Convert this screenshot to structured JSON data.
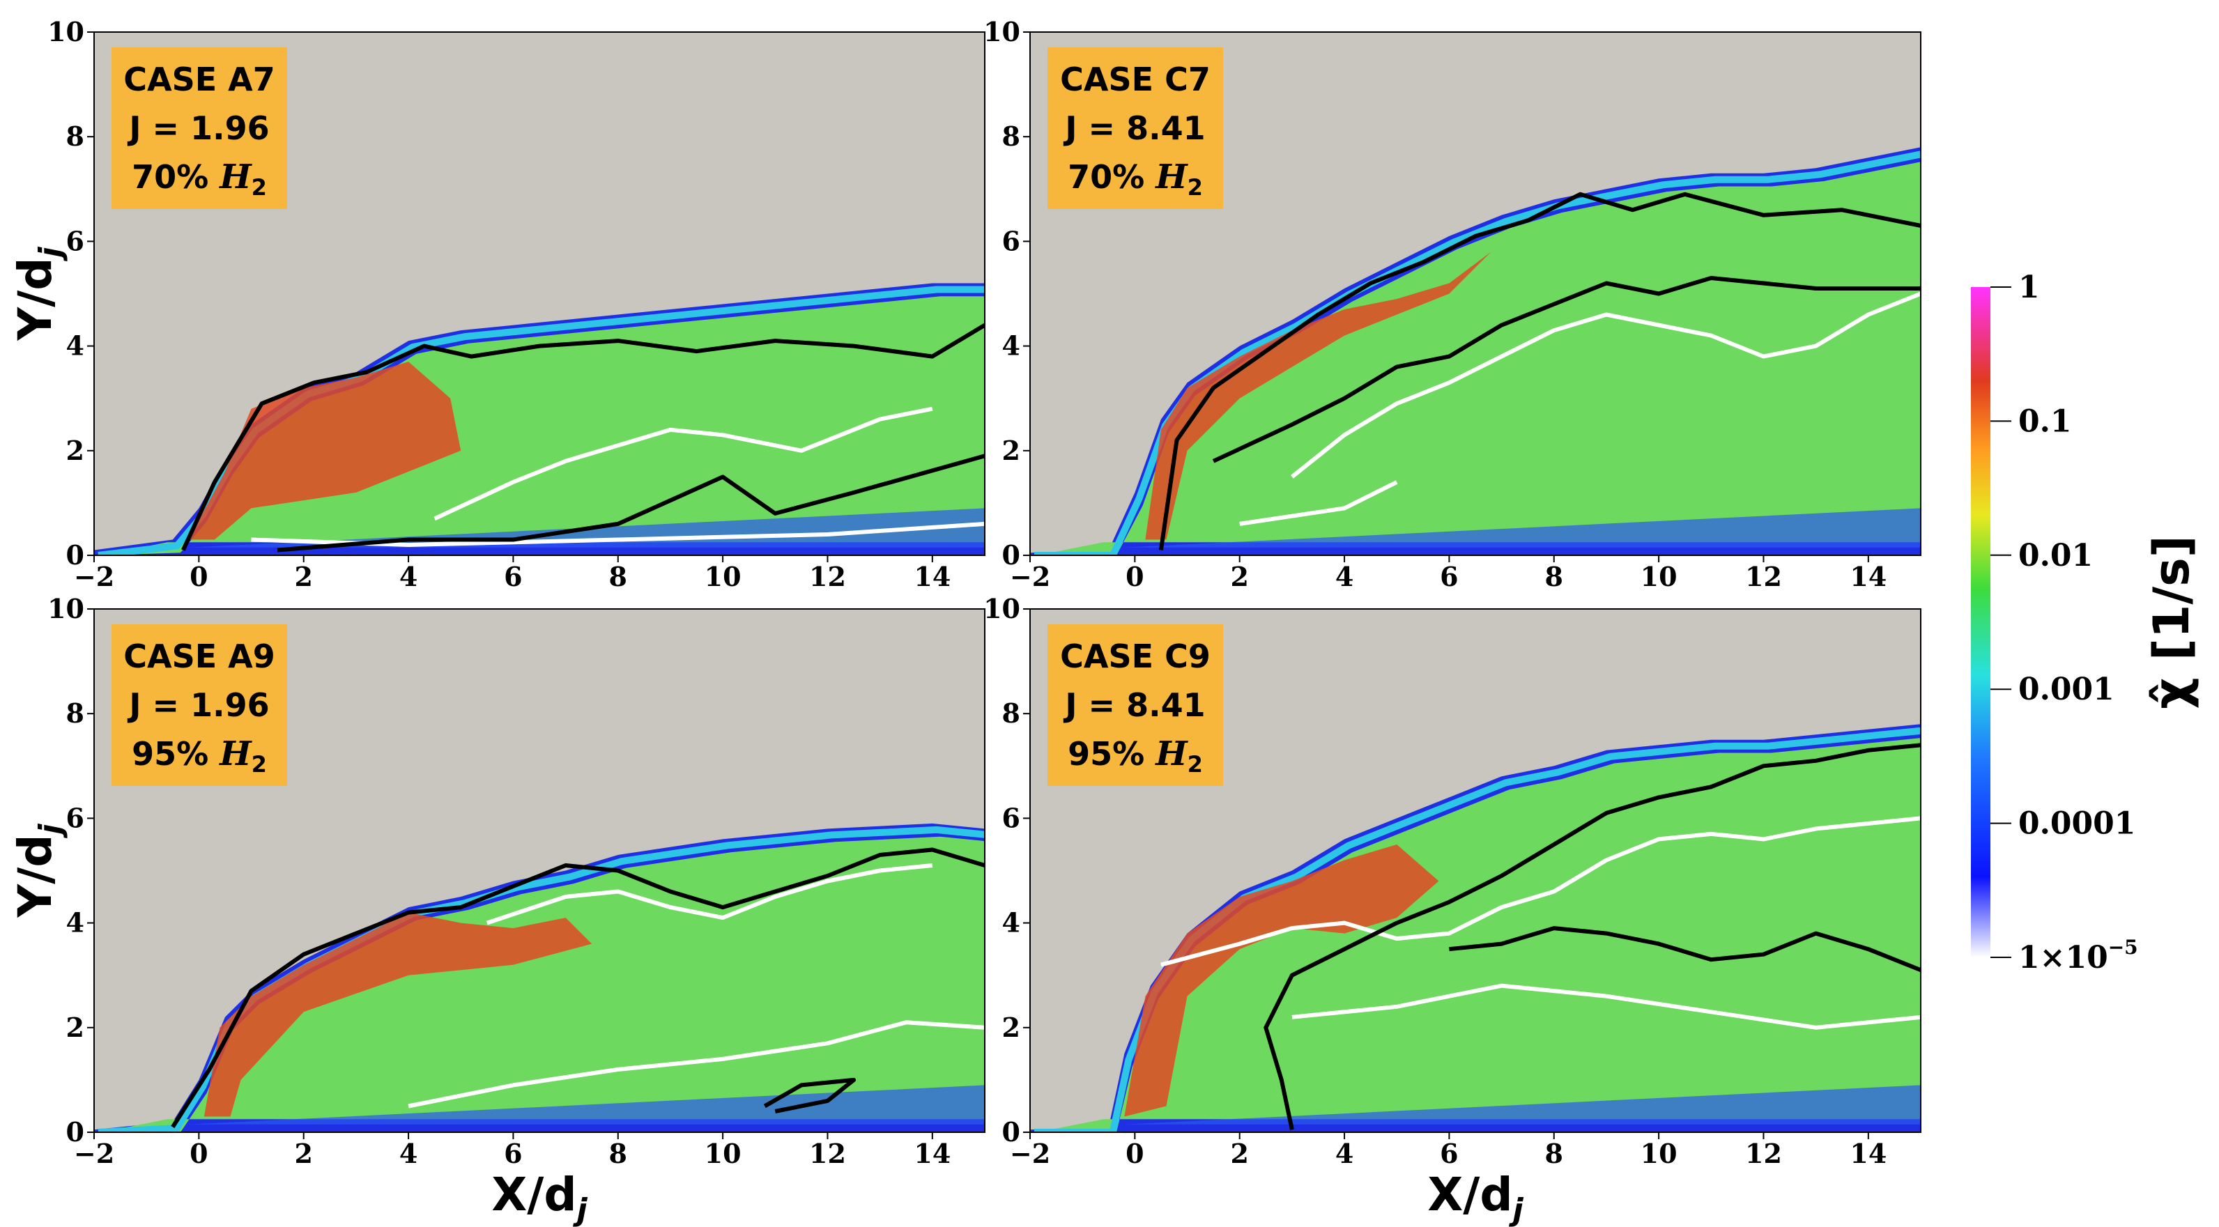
{
  "chart_data": [
    {
      "type": "heatmap",
      "case_label": "CASE A7",
      "j_label": "J = 1.96",
      "h2_label": "70%",
      "h2_species": "H",
      "h2_subscript": "2",
      "xlabel": "X/d",
      "xlabel_sub": "j",
      "ylabel": "Y/d",
      "ylabel_sub": "j",
      "xlim": [
        -2,
        15
      ],
      "ylim": [
        0,
        10
      ],
      "xticks": [
        -2,
        0,
        2,
        4,
        6,
        8,
        10,
        12,
        14
      ],
      "yticks": [
        0,
        2,
        4,
        6,
        8,
        10
      ],
      "show_xlabel": false,
      "show_ylabel": true,
      "plume_top": [
        [
          -2,
          0.1
        ],
        [
          -0.5,
          0.3
        ],
        [
          0,
          0.9
        ],
        [
          0.5,
          1.8
        ],
        [
          1,
          2.5
        ],
        [
          2,
          3.2
        ],
        [
          3,
          3.5
        ],
        [
          4,
          4.1
        ],
        [
          5,
          4.3
        ],
        [
          6,
          4.4
        ],
        [
          8,
          4.6
        ],
        [
          10,
          4.8
        ],
        [
          12,
          5.0
        ],
        [
          14,
          5.2
        ],
        [
          15,
          5.2
        ]
      ],
      "hot_region": [
        [
          -0.2,
          0.3
        ],
        [
          0.5,
          1.6
        ],
        [
          1,
          2.8
        ],
        [
          2,
          3.2
        ],
        [
          3,
          3.4
        ],
        [
          4,
          3.7
        ],
        [
          4.8,
          3.0
        ],
        [
          5,
          2.0
        ],
        [
          3,
          1.2
        ],
        [
          1,
          0.9
        ],
        [
          0.3,
          0.3
        ]
      ],
      "black_contour": [
        [
          -0.3,
          0.1
        ],
        [
          0.3,
          1.4
        ],
        [
          1.2,
          2.9
        ],
        [
          2.2,
          3.3
        ],
        [
          3.2,
          3.5
        ],
        [
          4.3,
          4.0
        ],
        [
          5.2,
          3.8
        ],
        [
          6.5,
          4.0
        ],
        [
          8,
          4.1
        ],
        [
          9.5,
          3.9
        ],
        [
          11,
          4.1
        ],
        [
          12.5,
          4.0
        ],
        [
          14,
          3.8
        ],
        [
          15,
          4.4
        ]
      ],
      "black_contour_lower": [
        [
          1.5,
          0.1
        ],
        [
          4,
          0.3
        ],
        [
          6,
          0.3
        ],
        [
          8,
          0.6
        ],
        [
          10,
          1.5
        ],
        [
          11,
          0.8
        ],
        [
          12.5,
          1.2
        ],
        [
          15,
          1.9
        ]
      ],
      "white_contour": [
        [
          4.5,
          0.7
        ],
        [
          6,
          1.4
        ],
        [
          7,
          1.8
        ],
        [
          8,
          2.1
        ],
        [
          9,
          2.4
        ],
        [
          10,
          2.3
        ],
        [
          11.5,
          2.0
        ],
        [
          13,
          2.6
        ],
        [
          14,
          2.8
        ]
      ],
      "white_contour_lower": [
        [
          1,
          0.3
        ],
        [
          4,
          0.2
        ],
        [
          8,
          0.3
        ],
        [
          12,
          0.4
        ],
        [
          15,
          0.6
        ]
      ]
    },
    {
      "type": "heatmap",
      "case_label": "CASE C7",
      "j_label": "J = 8.41",
      "h2_label": "70%",
      "h2_species": "H",
      "h2_subscript": "2",
      "xlabel": "X/d",
      "xlabel_sub": "j",
      "ylabel": "Y/d",
      "ylabel_sub": "j",
      "xlim": [
        -2,
        15
      ],
      "ylim": [
        0,
        10
      ],
      "xticks": [
        -2,
        0,
        2,
        4,
        6,
        8,
        10,
        12,
        14
      ],
      "yticks": [
        0,
        2,
        4,
        6,
        8,
        10
      ],
      "show_xlabel": false,
      "show_ylabel": false,
      "plume_top": [
        [
          -2,
          0.05
        ],
        [
          -0.5,
          0.1
        ],
        [
          0,
          1.2
        ],
        [
          0.5,
          2.6
        ],
        [
          1,
          3.3
        ],
        [
          2,
          4.0
        ],
        [
          3,
          4.5
        ],
        [
          4,
          5.1
        ],
        [
          5,
          5.6
        ],
        [
          6,
          6.1
        ],
        [
          7,
          6.5
        ],
        [
          8,
          6.8
        ],
        [
          9,
          7.0
        ],
        [
          10,
          7.2
        ],
        [
          11,
          7.3
        ],
        [
          12,
          7.3
        ],
        [
          13,
          7.4
        ],
        [
          14,
          7.6
        ],
        [
          15,
          7.8
        ]
      ],
      "hot_region": [
        [
          0.2,
          0.3
        ],
        [
          0.5,
          2.4
        ],
        [
          1,
          3.2
        ],
        [
          2,
          3.8
        ],
        [
          3,
          4.3
        ],
        [
          4,
          4.7
        ],
        [
          5,
          4.9
        ],
        [
          6,
          5.2
        ],
        [
          6.8,
          5.8
        ],
        [
          6,
          5.0
        ],
        [
          4,
          4.2
        ],
        [
          2,
          3.0
        ],
        [
          1,
          2.0
        ],
        [
          0.6,
          0.3
        ]
      ],
      "black_contour": [
        [
          0.5,
          0.1
        ],
        [
          0.8,
          2.2
        ],
        [
          1.5,
          3.2
        ],
        [
          2.5,
          3.9
        ],
        [
          3.5,
          4.6
        ],
        [
          4.5,
          5.2
        ],
        [
          5.5,
          5.6
        ],
        [
          6.5,
          6.1
        ],
        [
          7.5,
          6.4
        ],
        [
          8.5,
          6.9
        ],
        [
          9.5,
          6.6
        ],
        [
          10.5,
          6.9
        ],
        [
          12,
          6.5
        ],
        [
          13.5,
          6.6
        ],
        [
          15,
          6.3
        ]
      ],
      "black_contour_lower": [
        [
          1.5,
          1.8
        ],
        [
          3,
          2.5
        ],
        [
          4,
          3.0
        ],
        [
          5,
          3.6
        ],
        [
          6,
          3.8
        ],
        [
          7,
          4.4
        ],
        [
          8,
          4.8
        ],
        [
          9,
          5.2
        ],
        [
          10,
          5.0
        ],
        [
          11,
          5.3
        ],
        [
          13,
          5.1
        ],
        [
          15,
          5.1
        ]
      ],
      "white_contour": [
        [
          3,
          1.5
        ],
        [
          4,
          2.3
        ],
        [
          5,
          2.9
        ],
        [
          6,
          3.3
        ],
        [
          7,
          3.8
        ],
        [
          8,
          4.3
        ],
        [
          9,
          4.6
        ],
        [
          10,
          4.4
        ],
        [
          11,
          4.2
        ],
        [
          12,
          3.8
        ],
        [
          13,
          4.0
        ],
        [
          14,
          4.6
        ],
        [
          15,
          5.0
        ]
      ],
      "white_contour_lower": [
        [
          2,
          0.6
        ],
        [
          4,
          0.9
        ],
        [
          5,
          1.4
        ]
      ]
    },
    {
      "type": "heatmap",
      "case_label": "CASE A9",
      "j_label": "J = 1.96",
      "h2_label": "95%",
      "h2_species": "H",
      "h2_subscript": "2",
      "xlabel": "X/d",
      "xlabel_sub": "j",
      "ylabel": "Y/d",
      "ylabel_sub": "j",
      "xlim": [
        -2,
        15
      ],
      "ylim": [
        0,
        10
      ],
      "xticks": [
        -2,
        0,
        2,
        4,
        6,
        8,
        10,
        12,
        14
      ],
      "yticks": [
        0,
        2,
        4,
        6,
        8,
        10
      ],
      "show_xlabel": true,
      "show_ylabel": true,
      "plume_top": [
        [
          -2,
          0.05
        ],
        [
          -0.5,
          0.2
        ],
        [
          0,
          1.0
        ],
        [
          0.5,
          2.2
        ],
        [
          1,
          2.7
        ],
        [
          2,
          3.3
        ],
        [
          3,
          3.8
        ],
        [
          4,
          4.3
        ],
        [
          5,
          4.5
        ],
        [
          6,
          4.8
        ],
        [
          7,
          5.0
        ],
        [
          8,
          5.3
        ],
        [
          10,
          5.6
        ],
        [
          12,
          5.8
        ],
        [
          14,
          5.9
        ],
        [
          15,
          5.8
        ]
      ],
      "hot_region": [
        [
          0.1,
          0.3
        ],
        [
          0.4,
          2.0
        ],
        [
          1,
          2.6
        ],
        [
          2,
          3.2
        ],
        [
          3,
          3.7
        ],
        [
          4,
          4.2
        ],
        [
          5,
          4.0
        ],
        [
          6,
          3.9
        ],
        [
          7,
          4.1
        ],
        [
          7.5,
          3.6
        ],
        [
          6,
          3.2
        ],
        [
          4,
          3.0
        ],
        [
          2,
          2.3
        ],
        [
          0.8,
          1.0
        ],
        [
          0.6,
          0.3
        ]
      ],
      "black_contour": [
        [
          -0.5,
          0.1
        ],
        [
          0.2,
          1.2
        ],
        [
          1,
          2.7
        ],
        [
          2,
          3.4
        ],
        [
          3,
          3.8
        ],
        [
          4,
          4.2
        ],
        [
          5,
          4.3
        ],
        [
          6,
          4.7
        ],
        [
          7,
          5.1
        ],
        [
          8,
          5.0
        ],
        [
          9,
          4.6
        ],
        [
          10,
          4.3
        ],
        [
          11,
          4.6
        ],
        [
          12,
          4.9
        ],
        [
          13,
          5.3
        ],
        [
          14,
          5.4
        ],
        [
          15,
          5.1
        ]
      ],
      "black_contour_lower": [
        [
          10.8,
          0.5
        ],
        [
          11.5,
          0.9
        ],
        [
          12.5,
          1.0
        ],
        [
          12,
          0.6
        ],
        [
          11,
          0.4
        ]
      ],
      "white_contour": [
        [
          5.5,
          4.0
        ],
        [
          7,
          4.5
        ],
        [
          8,
          4.6
        ],
        [
          9,
          4.3
        ],
        [
          10,
          4.1
        ],
        [
          11,
          4.5
        ],
        [
          12,
          4.8
        ],
        [
          13,
          5.0
        ],
        [
          14,
          5.1
        ]
      ],
      "white_contour_lower": [
        [
          4,
          0.5
        ],
        [
          6,
          0.9
        ],
        [
          8,
          1.2
        ],
        [
          10,
          1.4
        ],
        [
          12,
          1.7
        ],
        [
          13.5,
          2.1
        ],
        [
          15,
          2.0
        ]
      ]
    },
    {
      "type": "heatmap",
      "case_label": "CASE C9",
      "j_label": "J = 8.41",
      "h2_label": "95%",
      "h2_species": "H",
      "h2_subscript": "2",
      "xlabel": "X/d",
      "xlabel_sub": "j",
      "ylabel": "Y/d",
      "ylabel_sub": "j",
      "xlim": [
        -2,
        15
      ],
      "ylim": [
        0,
        10
      ],
      "xticks": [
        -2,
        0,
        2,
        4,
        6,
        8,
        10,
        12,
        14
      ],
      "yticks": [
        0,
        2,
        4,
        6,
        8,
        10
      ],
      "show_xlabel": true,
      "show_ylabel": false,
      "plume_top": [
        [
          -2,
          0.05
        ],
        [
          -0.5,
          0.1
        ],
        [
          -0.2,
          1.5
        ],
        [
          0.3,
          2.8
        ],
        [
          1,
          3.8
        ],
        [
          2,
          4.6
        ],
        [
          3,
          5.0
        ],
        [
          4,
          5.6
        ],
        [
          5,
          6.0
        ],
        [
          6,
          6.4
        ],
        [
          7,
          6.8
        ],
        [
          8,
          7.0
        ],
        [
          9,
          7.3
        ],
        [
          10,
          7.4
        ],
        [
          11,
          7.5
        ],
        [
          12,
          7.5
        ],
        [
          13,
          7.6
        ],
        [
          14,
          7.7
        ],
        [
          15,
          7.8
        ]
      ],
      "hot_region": [
        [
          -0.2,
          0.3
        ],
        [
          0.2,
          2.6
        ],
        [
          1,
          3.8
        ],
        [
          2,
          4.5
        ],
        [
          3,
          4.8
        ],
        [
          4,
          5.2
        ],
        [
          5,
          5.5
        ],
        [
          5.8,
          4.8
        ],
        [
          5,
          4.1
        ],
        [
          4,
          3.8
        ],
        [
          3,
          3.9
        ],
        [
          2,
          3.5
        ],
        [
          1,
          2.6
        ],
        [
          0.6,
          0.5
        ]
      ],
      "black_contour": [
        [
          3,
          0.05
        ],
        [
          2.8,
          1.0
        ],
        [
          2.5,
          2.0
        ],
        [
          3,
          3.0
        ],
        [
          4,
          3.5
        ],
        [
          5,
          4.0
        ],
        [
          6,
          4.4
        ],
        [
          7,
          4.9
        ],
        [
          8,
          5.5
        ],
        [
          9,
          6.1
        ],
        [
          10,
          6.4
        ],
        [
          11,
          6.6
        ],
        [
          12,
          7.0
        ],
        [
          13,
          7.1
        ],
        [
          14,
          7.3
        ],
        [
          15,
          7.4
        ]
      ],
      "black_contour_lower": [
        [
          6,
          3.5
        ],
        [
          7,
          3.6
        ],
        [
          8,
          3.9
        ],
        [
          9,
          3.8
        ],
        [
          10,
          3.6
        ],
        [
          11,
          3.3
        ],
        [
          12,
          3.4
        ],
        [
          13,
          3.8
        ],
        [
          14,
          3.5
        ],
        [
          15,
          3.1
        ]
      ],
      "white_contour": [
        [
          0.5,
          3.2
        ],
        [
          2,
          3.6
        ],
        [
          3,
          3.9
        ],
        [
          4,
          4.0
        ],
        [
          5,
          3.7
        ],
        [
          6,
          3.8
        ],
        [
          7,
          4.3
        ],
        [
          8,
          4.6
        ],
        [
          9,
          5.2
        ],
        [
          10,
          5.6
        ],
        [
          11,
          5.7
        ],
        [
          12,
          5.6
        ],
        [
          13,
          5.8
        ],
        [
          14,
          5.9
        ],
        [
          15,
          6.0
        ]
      ],
      "white_contour_lower": [
        [
          3,
          2.2
        ],
        [
          5,
          2.4
        ],
        [
          7,
          2.8
        ],
        [
          9,
          2.6
        ],
        [
          11,
          2.3
        ],
        [
          13,
          2.0
        ],
        [
          15,
          2.2
        ]
      ]
    }
  ],
  "colorbar": {
    "label": "χ̂ [1/s]",
    "scale": "log",
    "ticks": [
      {
        "value": 1,
        "label": "1"
      },
      {
        "value": 0.1,
        "label": "0.1"
      },
      {
        "value": 0.01,
        "label": "0.01"
      },
      {
        "value": 0.001,
        "label": "0.001"
      },
      {
        "value": 0.0001,
        "label": "0.0001"
      },
      {
        "value": 1e-05,
        "label": "1×10",
        "exponent": "−5"
      }
    ],
    "colors": [
      "#ffffff",
      "#0000ff",
      "#21e0e0",
      "#3ddc3d",
      "#e8e820",
      "#e03a1e",
      "#ff33ff"
    ]
  },
  "colors": {
    "background": "#c9c6bf",
    "label_box": "#f7b63c",
    "plume_green": "#6ed95f",
    "outer_blue": "#1f2fe3",
    "hot_red": "#e04a25",
    "contour_black": "#000000",
    "contour_white": "#ffffff"
  }
}
